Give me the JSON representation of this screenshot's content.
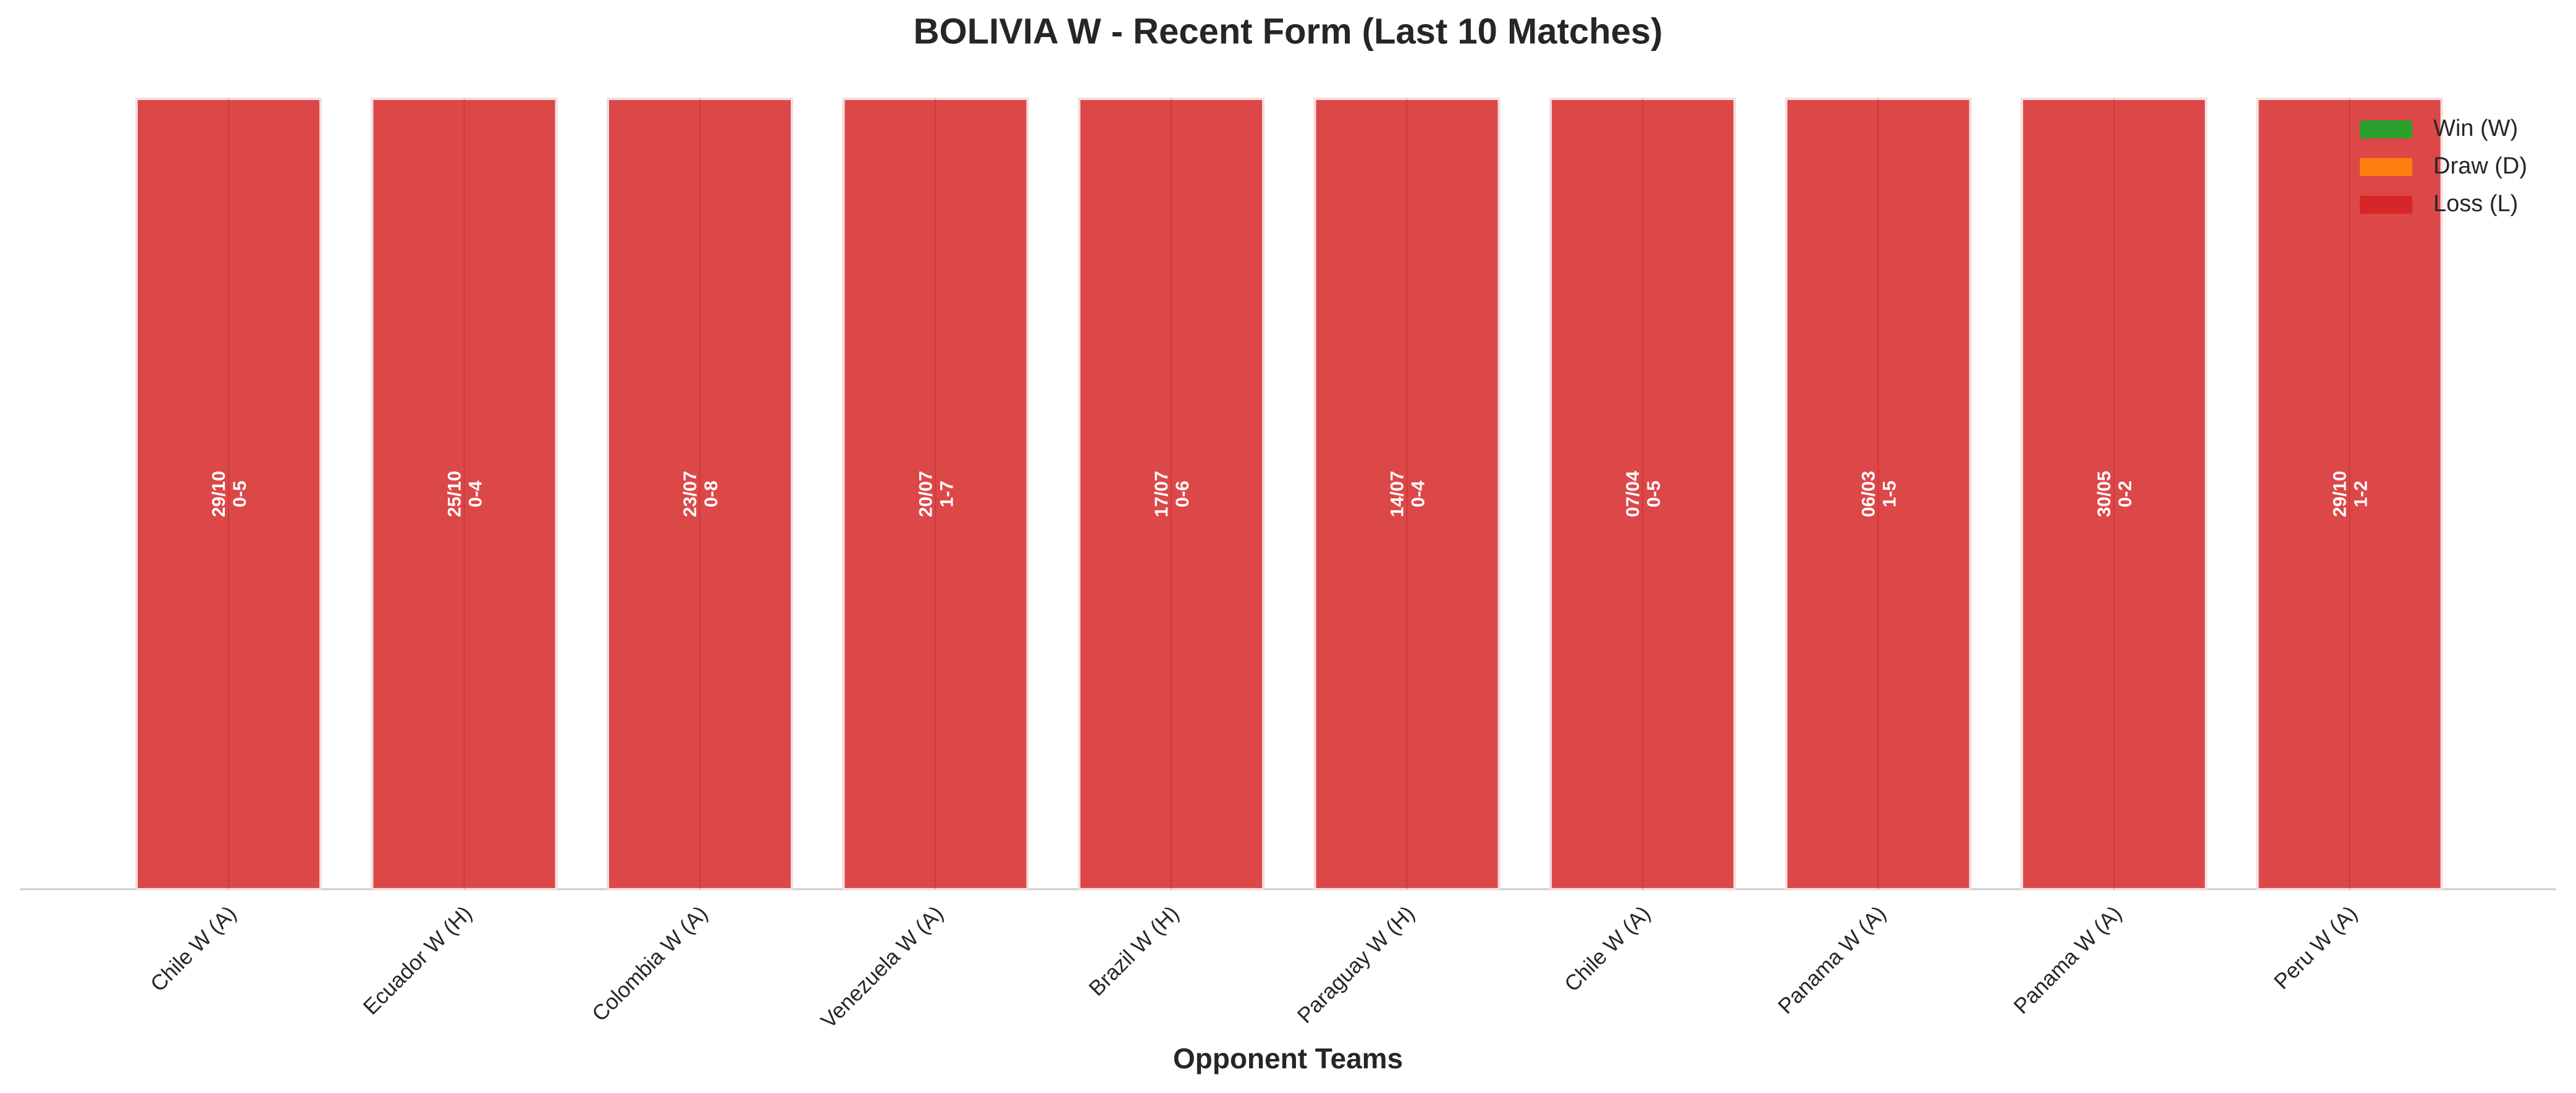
{
  "chart_data": {
    "type": "bar",
    "title": "BOLIVIA W - Recent Form (Last 10 Matches)",
    "x_label": "Opponent Teams",
    "categories": [
      "Chile W (A)",
      "Ecuador W (H)",
      "Colombia W (A)",
      "Venezuela W (A)",
      "Brazil W (H)",
      "Paraguay W (H)",
      "Chile W (A)",
      "Panama W (A)",
      "Panama W (A)",
      "Peru W (A)"
    ],
    "values": [
      1,
      1,
      1,
      1,
      1,
      1,
      1,
      1,
      1,
      1
    ],
    "dates": [
      "29/10",
      "25/10",
      "23/07",
      "20/07",
      "17/07",
      "14/07",
      "07/04",
      "06/03",
      "30/05",
      "29/10"
    ],
    "scores": [
      "0-5",
      "0-4",
      "0-8",
      "1-7",
      "0-6",
      "0-4",
      "0-5",
      "1-5",
      "0-2",
      "1-2"
    ],
    "colors": [
      "#d62728",
      "#d62728",
      "#d62728",
      "#d62728",
      "#d62728",
      "#d62728",
      "#d62728",
      "#d62728",
      "#d62728",
      "#d62728"
    ],
    "ylim": [
      0,
      1
    ],
    "legend": [
      {
        "name": "Win (W)",
        "color": "#2ca02c"
      },
      {
        "name": "Draw (D)",
        "color": "#ff7f0e"
      },
      {
        "name": "Loss (L)",
        "color": "#d62728"
      }
    ],
    "legend_loc": "upper right"
  }
}
